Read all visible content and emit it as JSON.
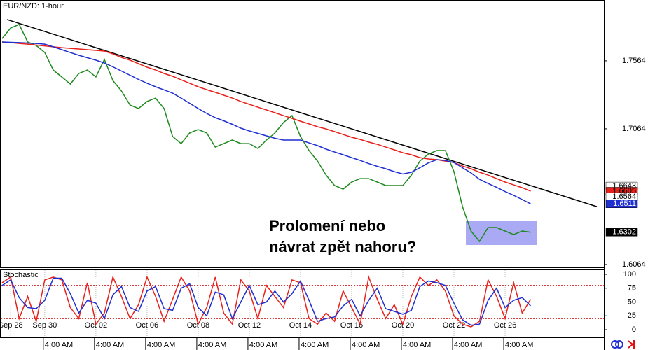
{
  "chart_data": [
    {
      "type": "line",
      "title": "EUR/NZD: 1-hour",
      "annotation": [
        "Prolomení nebo",
        "návrat zpět nahoru?"
      ],
      "categories": [
        null,
        "Sep 28",
        null,
        null,
        null,
        "Sep 30",
        null,
        null,
        null,
        null,
        null,
        "Oct 02",
        null,
        null,
        null,
        null,
        null,
        "Oct 06",
        null,
        null,
        null,
        null,
        null,
        "Oct 08",
        null,
        null,
        null,
        null,
        null,
        "Oct 12",
        null,
        null,
        null,
        null,
        null,
        "Oct 14",
        null,
        null,
        null,
        null,
        null,
        "Oct 16",
        null,
        null,
        null,
        null,
        null,
        "Oct 20",
        null,
        null,
        null,
        null,
        null,
        "Oct 22",
        null,
        null,
        null,
        null,
        null,
        "Oct 26",
        null,
        null,
        null
      ],
      "time_labels": [
        null,
        null,
        null,
        null,
        null,
        "4:00 AM",
        null,
        null,
        null,
        null,
        null,
        "4:00 AM",
        null,
        null,
        null,
        null,
        null,
        "4:00 AM",
        null,
        null,
        null,
        null,
        null,
        "4:00 AM",
        null,
        null,
        null,
        null,
        null,
        "4:00 AM",
        null,
        null,
        null,
        null,
        null,
        "4:00 AM",
        null,
        null,
        null,
        null,
        null,
        "4:00 AM",
        null,
        null,
        null,
        null,
        null,
        "4:00 AM",
        null,
        null,
        null,
        null,
        null,
        "4:00 AM",
        null,
        null,
        null,
        null,
        null,
        "4:00 AM",
        null,
        null,
        null
      ],
      "series": [
        {
          "color": "#1f8a1f",
          "values": [
            1.7728,
            1.7806,
            1.7832,
            1.7703,
            1.7677,
            1.7625,
            1.7496,
            1.7445,
            1.7393,
            1.7471,
            1.7496,
            1.7445,
            1.7574,
            1.7419,
            1.7342,
            1.7239,
            1.7213,
            1.7265,
            1.729,
            1.7213,
            1.7007,
            1.6955,
            1.7033,
            1.7058,
            1.7033,
            1.6929,
            1.6955,
            1.6981,
            1.6955,
            1.6955,
            1.6919,
            1.6981,
            1.7033,
            1.711,
            1.7161,
            1.7007,
            1.6904,
            1.6826,
            1.6723,
            1.6646,
            1.662,
            1.6672,
            1.6697,
            1.6697,
            1.6672,
            1.6646,
            1.6646,
            1.6646,
            1.6723,
            1.6826,
            1.6878,
            1.6904,
            1.6904,
            1.6749,
            1.6491,
            1.6311,
            1.6234,
            1.6337,
            1.6337,
            1.6311,
            1.6285,
            1.6311,
            1.6302
          ]
        },
        {
          "color": "#e8211b",
          "values": [
            1.7703,
            1.7698,
            1.7692,
            1.7687,
            1.768,
            1.7674,
            1.7667,
            1.7661,
            1.7656,
            1.7651,
            1.7646,
            1.7641,
            1.7636,
            1.7615,
            1.7589,
            1.7569,
            1.7543,
            1.7517,
            1.7496,
            1.7471,
            1.745,
            1.7424,
            1.7399,
            1.7373,
            1.7352,
            1.7332,
            1.7311,
            1.729,
            1.7265,
            1.7244,
            1.7223,
            1.7203,
            1.7182,
            1.7161,
            1.7141,
            1.712,
            1.71,
            1.7079,
            1.7063,
            1.7043,
            1.7022,
            1.7002,
            1.6986,
            1.6966,
            1.695,
            1.6929,
            1.6909,
            1.6888,
            1.6873,
            1.6852,
            1.6842,
            1.6837,
            1.6826,
            1.6816,
            1.679,
            1.677,
            1.6744,
            1.6723,
            1.6697,
            1.6672,
            1.6651,
            1.663,
            1.6605
          ]
        },
        {
          "color": "#1f2fd1",
          "values": [
            1.7703,
            1.77,
            1.7698,
            1.7695,
            1.7692,
            1.7687,
            1.7667,
            1.7646,
            1.7625,
            1.7605,
            1.7587,
            1.7569,
            1.7548,
            1.752,
            1.7489,
            1.7458,
            1.7427,
            1.7399,
            1.7373,
            1.735,
            1.7326,
            1.729,
            1.7252,
            1.7213,
            1.7177,
            1.7146,
            1.7123,
            1.7097,
            1.7069,
            1.7048,
            1.703,
            1.7012,
            1.6994,
            1.6981,
            1.6981,
            1.6981,
            1.696,
            1.694,
            1.6914,
            1.6893,
            1.6873,
            1.6852,
            1.6831,
            1.6808,
            1.6788,
            1.677,
            1.6749,
            1.6731,
            1.6744,
            1.6777,
            1.6813,
            1.6837,
            1.6831,
            1.6816,
            1.6777,
            1.6739,
            1.6692,
            1.6661,
            1.6633,
            1.6602,
            1.6574,
            1.6543,
            1.6511
          ]
        }
      ],
      "trendline": {
        "color": "#000000",
        "values": [
          1.7868,
          1.6491
        ]
      },
      "price_tags": [
        {
          "value": 1.6643,
          "color": "#ffffff",
          "text_color": "#000000"
        },
        {
          "value": 1.6605,
          "color": "#e8211b",
          "text_color": "#000000"
        },
        {
          "value": 1.6564,
          "color": "#ffffff",
          "text_color": "#000000"
        },
        {
          "value": 1.6511,
          "color": "#1f2fd1",
          "text_color": "#ffffff"
        },
        {
          "value": 1.6302,
          "color": "#000000",
          "text_color": "#ffffff"
        }
      ],
      "ylim": [
        1.6038,
        1.8012
      ],
      "yticks": [
        1.6064,
        1.7064,
        1.7564
      ]
    },
    {
      "type": "line",
      "title": "Stochastic",
      "series": [
        {
          "color": "#e8211b",
          "values": [
            85,
            95,
            20,
            60,
            15,
            90,
            95,
            90,
            40,
            20,
            85,
            10,
            30,
            95,
            60,
            20,
            45,
            95,
            60,
            15,
            55,
            95,
            70,
            10,
            40,
            95,
            30,
            10,
            90,
            70,
            20,
            80,
            60,
            40,
            90,
            85,
            20,
            10,
            30,
            15,
            70,
            40,
            10,
            95,
            55,
            20,
            45,
            10,
            60,
            95,
            80,
            90,
            70,
            25,
            10,
            5,
            15,
            90,
            60,
            20,
            85,
            30,
            55
          ]
        },
        {
          "color": "#1f2fd1",
          "values": [
            80,
            90,
            58,
            40,
            38,
            53,
            93,
            93,
            65,
            30,
            53,
            48,
            20,
            63,
            78,
            40,
            33,
            70,
            78,
            38,
            35,
            75,
            83,
            40,
            25,
            68,
            63,
            20,
            50,
            80,
            45,
            50,
            70,
            50,
            65,
            88,
            53,
            15,
            20,
            23,
            43,
            55,
            25,
            53,
            75,
            38,
            33,
            28,
            35,
            78,
            88,
            85,
            80,
            48,
            18,
            8,
            10,
            53,
            75,
            40,
            53,
            58,
            43
          ]
        }
      ],
      "levels": [
        80,
        20
      ],
      "ylim": [
        0,
        100
      ],
      "yticks": [
        0,
        25,
        50,
        75,
        100
      ]
    }
  ]
}
